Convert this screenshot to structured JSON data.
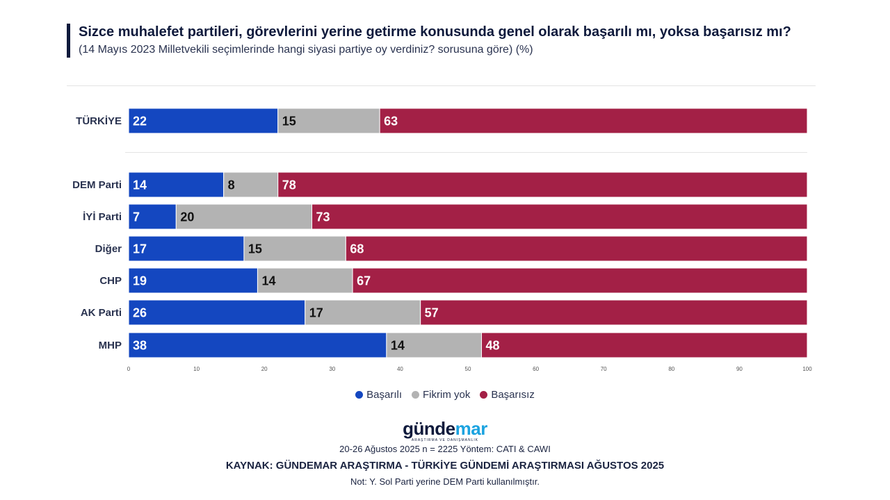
{
  "title": "Sizce muhalefet partileri, görevlerini yerine getirme konusunda genel olarak başarılı mı, yoksa başarısız mı?",
  "subtitle": "(14 Mayıs 2023 Milletvekili seçimlerinde hangi siyasi partiye oy verdiniz? sorusuna göre) (%)",
  "chart_data": {
    "type": "bar",
    "orientation": "horizontal",
    "stacked": true,
    "categories": [
      "TÜRKİYE",
      "DEM Parti",
      "İYİ Parti",
      "Diğer",
      "CHP",
      "AK Parti",
      "MHP"
    ],
    "series": [
      {
        "name": "Başarılı",
        "color": "#1447c0",
        "values": [
          22,
          14,
          7,
          17,
          19,
          26,
          38
        ]
      },
      {
        "name": "Fikrim yok",
        "color": "#b3b3b3",
        "values": [
          15,
          8,
          20,
          15,
          14,
          17,
          14
        ]
      },
      {
        "name": "Başarısız",
        "color": "#a32046",
        "values": [
          63,
          78,
          73,
          68,
          67,
          57,
          48
        ]
      }
    ],
    "xlim": [
      0,
      100
    ],
    "xticks": [
      0,
      10,
      20,
      30,
      40,
      50,
      60,
      70,
      80,
      90,
      100
    ],
    "legend": "bottom-center"
  },
  "legend": [
    {
      "label": "Başarılı",
      "color": "#1447c0"
    },
    {
      "label": "Fikrim yok",
      "color": "#b3b3b3"
    },
    {
      "label": "Başarısız",
      "color": "#a32046"
    }
  ],
  "logo": {
    "part1": "günde",
    "part2": "mar",
    "tagline": "ARAŞTIRMA VE DANIŞMANLIK"
  },
  "footer": {
    "method": "20-26 Ağustos 2025 n = 2225 Yöntem: CATI & CAWI",
    "source": "KAYNAK: GÜNDEMAR ARAŞTIRMA - TÜRKİYE GÜNDEMİ ARAŞTIRMASI AĞUSTOS 2025",
    "note": "Not: Y. Sol Parti yerine DEM Parti kullanılmıştır."
  }
}
